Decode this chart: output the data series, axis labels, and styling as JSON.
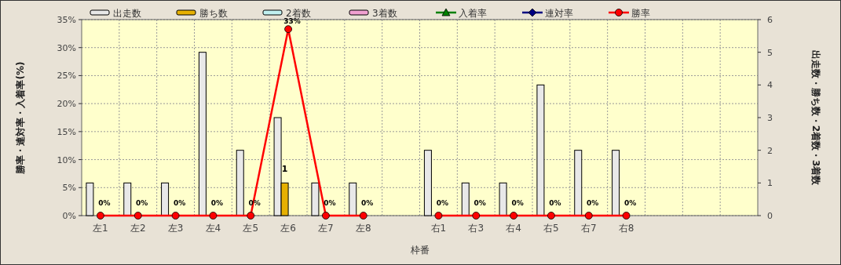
{
  "chart_data": {
    "type": "bar",
    "xlabel": "枠番",
    "ylabel": "勝率・連対率・入着率(%)",
    "y2label": "出走数・勝ち数・2着数・3着数",
    "categories": [
      "左1",
      "左2",
      "左3",
      "左4",
      "左5",
      "左6",
      "左7",
      "左8",
      null,
      "右1",
      "右3",
      "右4",
      "右5",
      "右7",
      "右8",
      null,
      null,
      null
    ],
    "series": [
      {
        "name": "出走数",
        "axis": "y2",
        "color": "#e8e8e8",
        "values": [
          1,
          1,
          1,
          5,
          2,
          3,
          1,
          1,
          null,
          2,
          1,
          1,
          4,
          2,
          2,
          null,
          null,
          null
        ]
      },
      {
        "name": "勝ち数",
        "axis": "y2",
        "color": "#e6b000",
        "values": [
          0,
          0,
          0,
          0,
          0,
          1,
          0,
          0,
          null,
          0,
          0,
          0,
          0,
          0,
          0,
          null,
          null,
          null
        ],
        "value_labels": [
          null,
          null,
          null,
          null,
          null,
          "1",
          null,
          null,
          null,
          null,
          null,
          null,
          null,
          null,
          null,
          null,
          null,
          null
        ]
      },
      {
        "name": "2着数",
        "axis": "y2",
        "color": "#c0f0f0",
        "values": [
          0,
          0,
          0,
          0,
          0,
          0,
          0,
          0,
          null,
          0,
          0,
          0,
          0,
          0,
          0,
          null,
          null,
          null
        ]
      },
      {
        "name": "3着数",
        "axis": "y2",
        "color": "#f0a0d0",
        "values": [
          0,
          0,
          0,
          0,
          0,
          0,
          0,
          0,
          null,
          0,
          0,
          0,
          0,
          0,
          0,
          null,
          null,
          null
        ]
      },
      {
        "name": "入着率",
        "type": "line",
        "color": "#008000",
        "marker": "triangle",
        "values": [
          null,
          null,
          null,
          null,
          null,
          null,
          null,
          null,
          null,
          null,
          null,
          null,
          null,
          null,
          null,
          null,
          null,
          null
        ]
      },
      {
        "name": "連対率",
        "type": "line",
        "color": "#000080",
        "marker": "diamond",
        "values": [
          null,
          null,
          null,
          null,
          null,
          null,
          null,
          null,
          null,
          null,
          null,
          null,
          null,
          null,
          null,
          null,
          null,
          null
        ]
      },
      {
        "name": "勝率",
        "type": "line",
        "color": "#ff0000",
        "marker": "circle",
        "values": [
          0,
          0,
          0,
          0,
          0,
          33.3,
          0,
          0,
          null,
          0,
          0,
          0,
          0,
          0,
          0,
          null,
          null,
          null
        ],
        "value_labels": [
          "0%",
          "0%",
          "0%",
          "0%",
          "0%",
          "33%",
          "0%",
          "0%",
          null,
          "0%",
          "0%",
          "0%",
          "0%",
          "0%",
          "0%",
          null,
          null,
          null
        ]
      }
    ],
    "ylim": [
      0,
      35
    ],
    "yticks": [
      {
        "value": 0,
        "label": "0%"
      },
      {
        "value": 5,
        "label": "5%"
      },
      {
        "value": 10,
        "label": "10%"
      },
      {
        "value": 15,
        "label": "15%"
      },
      {
        "value": 20,
        "label": "20%"
      },
      {
        "value": 25,
        "label": "25%"
      },
      {
        "value": 30,
        "label": "30%"
      },
      {
        "value": 35,
        "label": "35%"
      }
    ],
    "y2lim": [
      0,
      6
    ],
    "y2ticks": [
      0,
      1,
      2,
      3,
      4,
      5,
      6
    ],
    "grid": true,
    "legend": "top"
  }
}
